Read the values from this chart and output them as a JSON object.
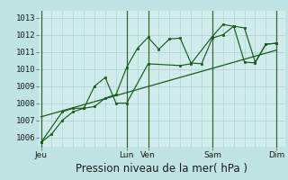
{
  "bg_color": "#c0e4e4",
  "plot_bg_color": "#d0ecec",
  "grid_color": "#b0d4d4",
  "line_color": "#1a5c1a",
  "marker_color": "#1a5c1a",
  "vline_color": "#336633",
  "ylabel_ticks": [
    1006,
    1007,
    1008,
    1009,
    1010,
    1011,
    1012,
    1013
  ],
  "ylim": [
    1005.4,
    1013.4
  ],
  "xlabel": "Pression niveau de la mer( hPa )",
  "xlabel_fontsize": 8.5,
  "tick_fontsize": 6.5,
  "xtick_labels": [
    "Jeu",
    "Lun",
    "Ven",
    "Sam",
    "Dim"
  ],
  "xtick_positions": [
    0,
    4,
    5,
    8,
    11
  ],
  "vline_positions": [
    0,
    4,
    5,
    8,
    11
  ],
  "series1_x": [
    0,
    0.5,
    1.0,
    1.5,
    2.0,
    2.5,
    3.0,
    3.5,
    4.0,
    4.5,
    5.0,
    5.5,
    6.0,
    6.5,
    7.0,
    7.5,
    8.0,
    8.5,
    9.0,
    9.5,
    10.0,
    10.5,
    11.0
  ],
  "series1_y": [
    1005.7,
    1006.2,
    1007.0,
    1007.5,
    1007.7,
    1007.8,
    1008.3,
    1008.5,
    1010.1,
    1011.2,
    1011.85,
    1011.15,
    1011.75,
    1011.8,
    1010.35,
    1010.3,
    1011.8,
    1012.0,
    1012.5,
    1012.4,
    1010.4,
    1011.45,
    1011.5
  ],
  "series2_x": [
    0,
    1.0,
    1.5,
    2.0,
    2.5,
    3.0,
    3.5,
    4.0,
    5.0,
    6.5,
    7.0,
    8.0,
    8.5,
    9.0,
    9.5,
    10.0,
    10.5,
    11.0
  ],
  "series2_y": [
    1005.7,
    1007.5,
    1007.7,
    1007.7,
    1009.0,
    1009.5,
    1008.0,
    1008.0,
    1010.3,
    1010.2,
    1010.3,
    1011.9,
    1012.6,
    1012.5,
    1010.4,
    1010.35,
    1011.45,
    1011.5
  ],
  "trend_x": [
    0,
    11
  ],
  "trend_y": [
    1007.2,
    1011.1
  ],
  "xlim": [
    -0.1,
    11.4
  ]
}
